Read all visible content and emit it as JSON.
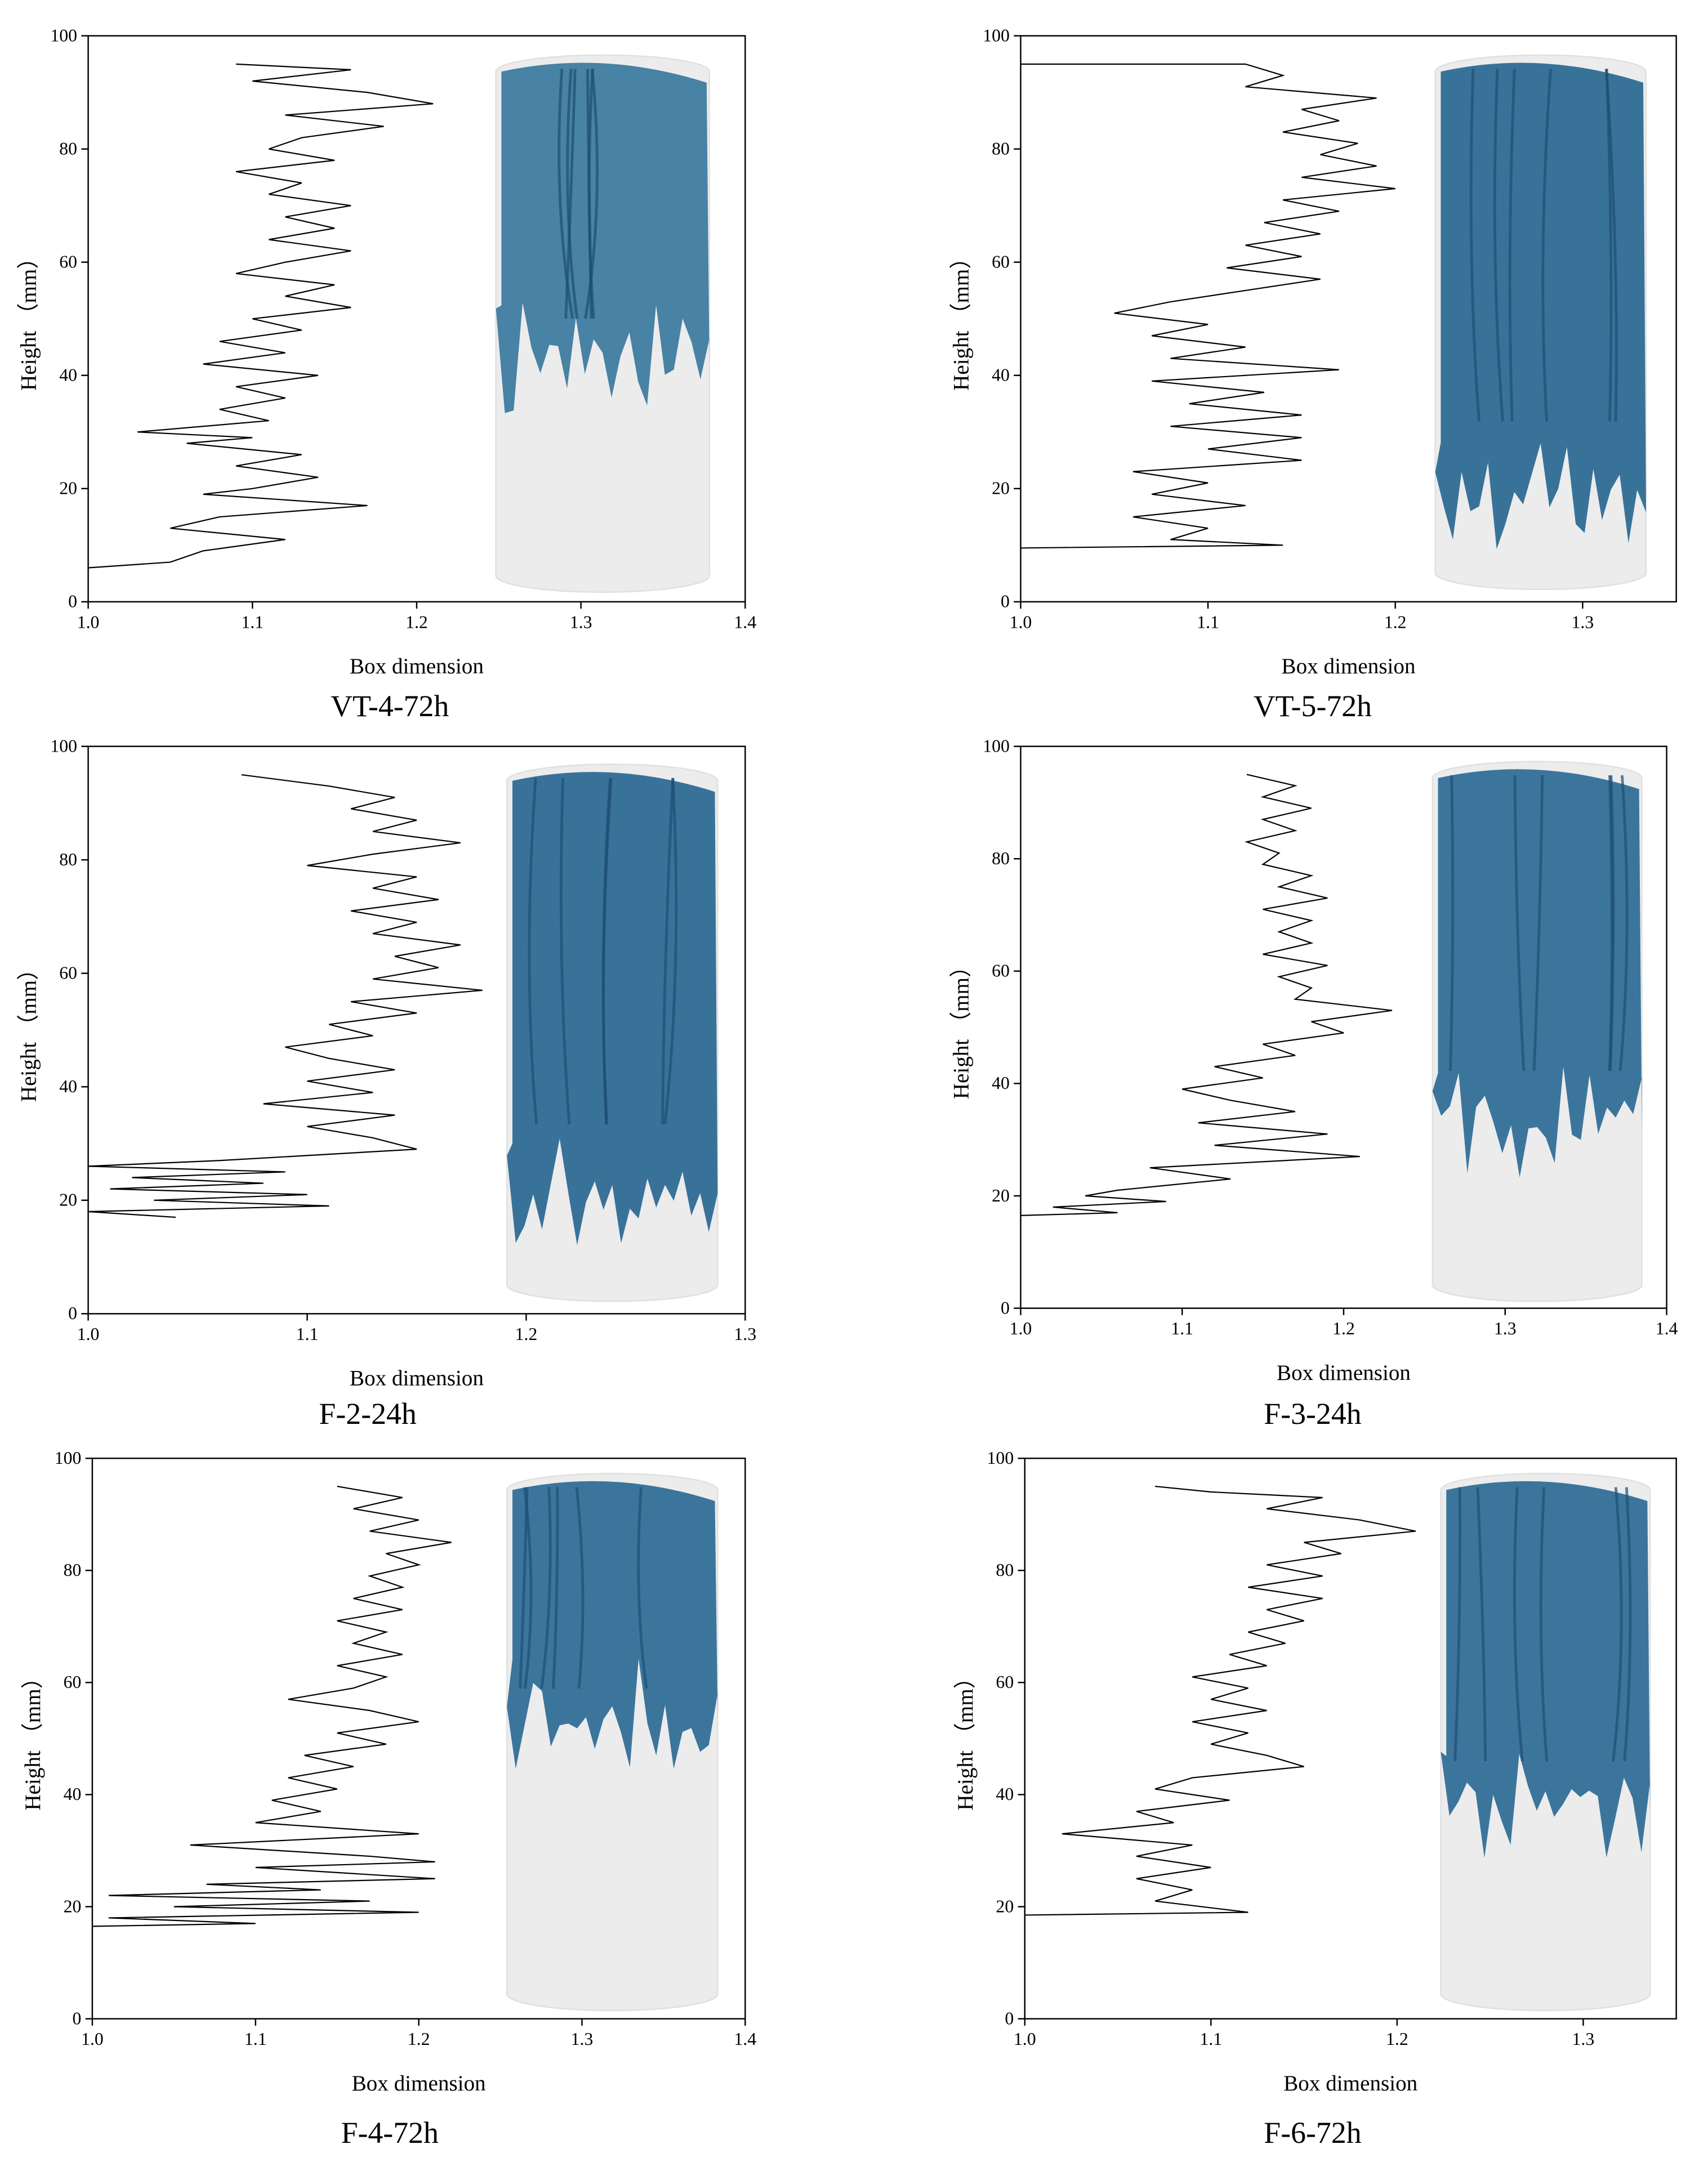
{
  "chart_data": [
    {
      "type": "line",
      "caption": "VT-4-72h",
      "xlabel": "Box dimension",
      "ylabel": "Height （mm）",
      "color": "#000000",
      "xlim": [
        1.0,
        1.4
      ],
      "xticks": [
        {
          "value": 1.0,
          "label": "1.0"
        },
        {
          "value": 1.1,
          "label": "1.1"
        },
        {
          "value": 1.2,
          "label": "1.2"
        },
        {
          "value": 1.3,
          "label": "1.3"
        },
        {
          "value": 1.4,
          "label": "1.4"
        }
      ],
      "ylim": [
        0,
        100
      ],
      "yticks": [
        0,
        20,
        40,
        60,
        80,
        100
      ],
      "x": [
        1.09,
        1.16,
        1.1,
        1.17,
        1.21,
        1.12,
        1.18,
        1.13,
        1.11,
        1.15,
        1.09,
        1.13,
        1.11,
        1.16,
        1.12,
        1.15,
        1.11,
        1.16,
        1.12,
        1.09,
        1.15,
        1.12,
        1.16,
        1.1,
        1.13,
        1.08,
        1.12,
        1.07,
        1.14,
        1.09,
        1.12,
        1.08,
        1.11,
        1.03,
        1.1,
        1.06,
        1.13,
        1.09,
        1.14,
        1.1,
        1.07,
        1.17,
        1.08,
        1.05,
        1.12,
        1.07,
        1.05,
        1.0
      ],
      "values": [
        95,
        94,
        92,
        90,
        88,
        86,
        84,
        82,
        80,
        78,
        76,
        74,
        72,
        70,
        68,
        66,
        64,
        62,
        60,
        58,
        56,
        54,
        52,
        50,
        48,
        46,
        44,
        42,
        40,
        38,
        36,
        34,
        32,
        30,
        29,
        28,
        26,
        24,
        22,
        20,
        19,
        17,
        15,
        13,
        11,
        9,
        7,
        6
      ]
    },
    {
      "type": "line",
      "caption": "VT-5-72h",
      "xlabel": "Box dimension",
      "ylabel": "Height （mm）",
      "color": "#000000",
      "xlim": [
        1.0,
        1.35
      ],
      "xticks": [
        {
          "value": 1.0,
          "label": "1.0"
        },
        {
          "value": 1.1,
          "label": "1.1"
        },
        {
          "value": 1.2,
          "label": "1.2"
        },
        {
          "value": 1.3,
          "label": "1.3"
        }
      ],
      "ylim": [
        0,
        100
      ],
      "yticks": [
        0,
        20,
        40,
        60,
        80,
        100
      ],
      "x": [
        1.0,
        1.12,
        1.14,
        1.12,
        1.19,
        1.15,
        1.17,
        1.14,
        1.18,
        1.16,
        1.19,
        1.15,
        1.2,
        1.14,
        1.17,
        1.13,
        1.16,
        1.12,
        1.15,
        1.11,
        1.16,
        1.12,
        1.08,
        1.05,
        1.1,
        1.07,
        1.12,
        1.08,
        1.17,
        1.07,
        1.13,
        1.09,
        1.15,
        1.08,
        1.15,
        1.1,
        1.15,
        1.06,
        1.1,
        1.07,
        1.12,
        1.06,
        1.1,
        1.08,
        1.14,
        1.0
      ],
      "values": [
        95,
        95,
        93,
        91,
        89,
        87,
        85,
        83,
        81,
        79,
        77,
        75,
        73,
        71,
        69,
        67,
        65,
        63,
        61,
        59,
        57,
        55,
        53,
        51,
        49,
        47,
        45,
        43,
        41,
        39,
        37,
        35,
        33,
        31,
        29,
        27,
        25,
        23,
        21,
        19,
        17,
        15,
        13,
        11,
        10,
        9.5
      ]
    },
    {
      "type": "line",
      "caption": "F-2-24h",
      "xlabel": "Box dimension",
      "ylabel": "Height （mm）",
      "color": "#000000",
      "xlim": [
        1.0,
        1.3
      ],
      "xticks": [
        {
          "value": 1.0,
          "label": "1.0"
        },
        {
          "value": 1.1,
          "label": "1.1"
        },
        {
          "value": 1.2,
          "label": "1.2"
        },
        {
          "value": 1.3,
          "label": "1.3"
        }
      ],
      "ylim": [
        0,
        100
      ],
      "yticks": [
        0,
        20,
        40,
        60,
        80,
        100
      ],
      "x": [
        1.07,
        1.11,
        1.14,
        1.12,
        1.15,
        1.13,
        1.17,
        1.13,
        1.1,
        1.15,
        1.13,
        1.16,
        1.12,
        1.15,
        1.13,
        1.17,
        1.14,
        1.16,
        1.13,
        1.18,
        1.12,
        1.15,
        1.11,
        1.13,
        1.09,
        1.11,
        1.14,
        1.1,
        1.13,
        1.08,
        1.14,
        1.1,
        1.13,
        1.15,
        1.06,
        1.0,
        1.09,
        1.02,
        1.08,
        1.01,
        1.1,
        1.03,
        1.11,
        1.0,
        1.04
      ],
      "values": [
        95,
        93,
        91,
        89,
        87,
        85,
        83,
        81,
        79,
        77,
        75,
        73,
        71,
        69,
        67,
        65,
        63,
        61,
        59,
        57,
        55,
        53,
        51,
        49,
        47,
        45,
        43,
        41,
        39,
        37,
        35,
        33,
        31,
        29,
        27,
        26,
        25,
        24,
        23,
        22,
        21,
        20,
        19,
        18,
        17
      ]
    },
    {
      "type": "line",
      "caption": "F-3-24h",
      "xlabel": "Box dimension",
      "ylabel": "Height （mm）",
      "color": "#000000",
      "xlim": [
        1.0,
        1.4
      ],
      "xticks": [
        {
          "value": 1.0,
          "label": "1.0"
        },
        {
          "value": 1.1,
          "label": "1.1"
        },
        {
          "value": 1.2,
          "label": "1.2"
        },
        {
          "value": 1.3,
          "label": "1.3"
        },
        {
          "value": 1.4,
          "label": "1.4"
        }
      ],
      "ylim": [
        0,
        100
      ],
      "yticks": [
        0,
        20,
        40,
        60,
        80,
        100
      ],
      "x": [
        1.14,
        1.17,
        1.15,
        1.18,
        1.15,
        1.17,
        1.14,
        1.16,
        1.15,
        1.18,
        1.16,
        1.19,
        1.15,
        1.18,
        1.16,
        1.18,
        1.15,
        1.19,
        1.16,
        1.18,
        1.17,
        1.23,
        1.18,
        1.2,
        1.15,
        1.17,
        1.12,
        1.15,
        1.1,
        1.13,
        1.17,
        1.11,
        1.19,
        1.12,
        1.21,
        1.08,
        1.13,
        1.06,
        1.04,
        1.09,
        1.02,
        1.06,
        1.0
      ],
      "values": [
        95,
        93,
        91,
        89,
        87,
        85,
        83,
        81,
        79,
        77,
        75,
        73,
        71,
        69,
        67,
        65,
        63,
        61,
        59,
        57,
        55,
        53,
        51,
        49,
        47,
        45,
        43,
        41,
        39,
        37,
        35,
        33,
        31,
        29,
        27,
        25,
        23,
        21,
        20,
        19,
        18,
        17,
        16.5
      ]
    },
    {
      "type": "line",
      "caption": "F-4-72h",
      "xlabel": "Box dimension",
      "ylabel": "Height （mm）",
      "color": "#000000",
      "xlim": [
        1.0,
        1.4
      ],
      "xticks": [
        {
          "value": 1.0,
          "label": "1.0"
        },
        {
          "value": 1.1,
          "label": "1.1"
        },
        {
          "value": 1.2,
          "label": "1.2"
        },
        {
          "value": 1.3,
          "label": "1.3"
        },
        {
          "value": 1.4,
          "label": "1.4"
        }
      ],
      "ylim": [
        0,
        100
      ],
      "yticks": [
        0,
        20,
        40,
        60,
        80,
        100
      ],
      "x": [
        1.15,
        1.19,
        1.16,
        1.2,
        1.17,
        1.22,
        1.18,
        1.2,
        1.17,
        1.19,
        1.16,
        1.19,
        1.15,
        1.18,
        1.16,
        1.19,
        1.15,
        1.18,
        1.16,
        1.12,
        1.17,
        1.2,
        1.15,
        1.18,
        1.13,
        1.16,
        1.12,
        1.15,
        1.11,
        1.14,
        1.1,
        1.2,
        1.06,
        1.17,
        1.21,
        1.1,
        1.21,
        1.07,
        1.14,
        1.01,
        1.17,
        1.05,
        1.2,
        1.01,
        1.1,
        1.0
      ],
      "values": [
        95,
        93,
        91,
        89,
        87,
        85,
        83,
        81,
        79,
        77,
        75,
        73,
        71,
        69,
        67,
        65,
        63,
        61,
        59,
        57,
        55,
        53,
        51,
        49,
        47,
        45,
        43,
        41,
        39,
        37,
        35,
        33,
        31,
        29,
        28,
        27,
        25,
        24,
        23,
        22,
        21,
        20,
        19,
        18,
        17,
        16.5
      ]
    },
    {
      "type": "line",
      "caption": "F-6-72h",
      "xlabel": "Box dimension",
      "ylabel": "Height （mm）",
      "color": "#000000",
      "xlim": [
        1.0,
        1.35
      ],
      "xticks": [
        {
          "value": 1.0,
          "label": "1.0"
        },
        {
          "value": 1.1,
          "label": "1.1"
        },
        {
          "value": 1.2,
          "label": "1.2"
        },
        {
          "value": 1.3,
          "label": "1.3"
        }
      ],
      "ylim": [
        0,
        100
      ],
      "yticks": [
        0,
        20,
        40,
        60,
        80,
        100
      ],
      "x": [
        1.07,
        1.1,
        1.16,
        1.13,
        1.18,
        1.21,
        1.15,
        1.17,
        1.13,
        1.16,
        1.12,
        1.16,
        1.13,
        1.15,
        1.12,
        1.14,
        1.11,
        1.13,
        1.09,
        1.12,
        1.1,
        1.13,
        1.09,
        1.12,
        1.1,
        1.13,
        1.15,
        1.09,
        1.07,
        1.11,
        1.06,
        1.08,
        1.02,
        1.09,
        1.06,
        1.1,
        1.06,
        1.09,
        1.07,
        1.12,
        1.0
      ],
      "values": [
        95,
        94,
        93,
        91,
        89,
        87,
        85,
        83,
        81,
        79,
        77,
        75,
        73,
        71,
        69,
        67,
        65,
        63,
        61,
        59,
        57,
        55,
        53,
        51,
        49,
        47,
        45,
        43,
        41,
        39,
        37,
        35,
        33,
        31,
        29,
        27,
        25,
        23,
        21,
        19,
        18.5
      ]
    }
  ]
}
